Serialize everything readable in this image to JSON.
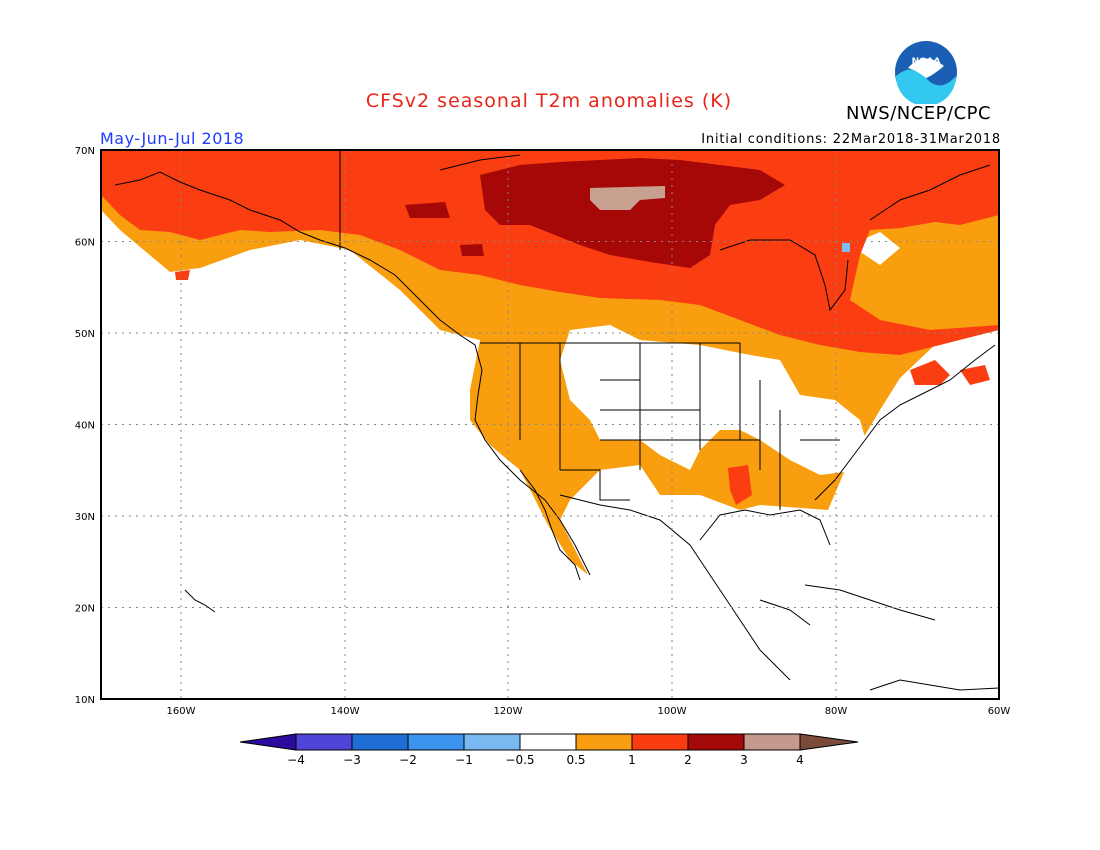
{
  "title": "CFSv2 seasonal T2m anomalies (K)",
  "organization": "NWS/NCEP/CPC",
  "logo_text": "NOAA",
  "period_label": "May-Jun-Jul 2018",
  "initial_conditions": "Initial conditions: 22Mar2018-31Mar2018",
  "map": {
    "lon_range": [
      -172,
      -60
    ],
    "lat_range": [
      10,
      70
    ],
    "lat_labels": [
      "70N",
      "60N",
      "50N",
      "40N",
      "30N",
      "20N",
      "10N"
    ],
    "lon_labels": [
      "160W",
      "140W",
      "120W",
      "100W",
      "80W",
      "60W"
    ],
    "grid": true
  },
  "colorbar": {
    "tick_labels": [
      "-4",
      "-3",
      "-2",
      "-1",
      "-0.5",
      "0.5",
      "1",
      "2",
      "3",
      "4"
    ],
    "colors": [
      "#2a0b9e",
      "#4e45d6",
      "#1f6fd6",
      "#3c94ef",
      "#7ab8f2",
      "#ffffff",
      "#f89e10",
      "#fb3b10",
      "#a50a0a",
      "#c49a8c",
      "#7a4b3a"
    ]
  },
  "anomaly_colors": {
    "light": "#f99e0e",
    "moderate": "#fb3d12",
    "strong": "#a60808",
    "extreme": "#c8a090",
    "cool": "#80bcef"
  }
}
